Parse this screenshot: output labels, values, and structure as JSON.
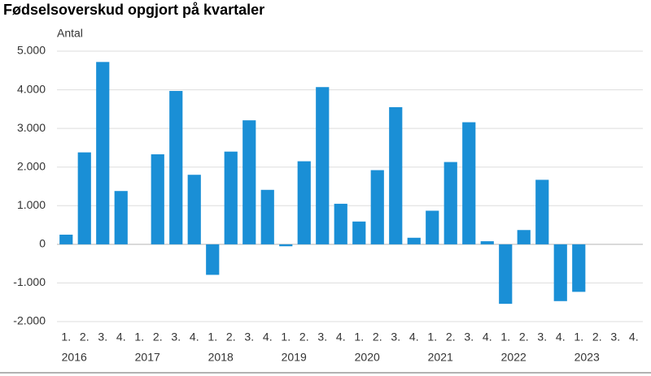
{
  "chart_data": {
    "type": "bar",
    "title": "Fødselsoverskud opgjort på kvartaler",
    "y_label": "Antal",
    "categories": [
      "1.",
      "2.",
      "3.",
      "4.",
      "1.",
      "2.",
      "3.",
      "4.",
      "1.",
      "2.",
      "3.",
      "4.",
      "1.",
      "2.",
      "3.",
      "4.",
      "1.",
      "2.",
      "3.",
      "4.",
      "1.",
      "2.",
      "3.",
      "4.",
      "1.",
      "2.",
      "3.",
      "4.",
      "1.",
      "2.",
      "3.",
      "4."
    ],
    "years": [
      "2016",
      "2017",
      "2018",
      "2019",
      "2020",
      "2021",
      "2022",
      "2023"
    ],
    "values": [
      250,
      2380,
      4720,
      1380,
      0,
      2330,
      3970,
      1800,
      -790,
      2400,
      3210,
      1410,
      -50,
      2150,
      4070,
      1050,
      590,
      1920,
      3550,
      170,
      870,
      2130,
      3160,
      80,
      -1540,
      370,
      1670,
      -1470,
      -1230,
      null,
      null,
      null
    ],
    "color": "#1a8fd6",
    "ylim": [
      -2000,
      5000
    ],
    "yticks": [
      {
        "value": -2000,
        "label": "-2.000"
      },
      {
        "value": -1000,
        "label": "-1.000"
      },
      0,
      {
        "value": 1000,
        "label": "1.000"
      },
      {
        "value": 2000,
        "label": "2.000"
      },
      {
        "value": 3000,
        "label": "3.000"
      },
      {
        "value": 4000,
        "label": "4.000"
      },
      {
        "value": 5000,
        "label": "5.000"
      }
    ],
    "grid": true
  }
}
